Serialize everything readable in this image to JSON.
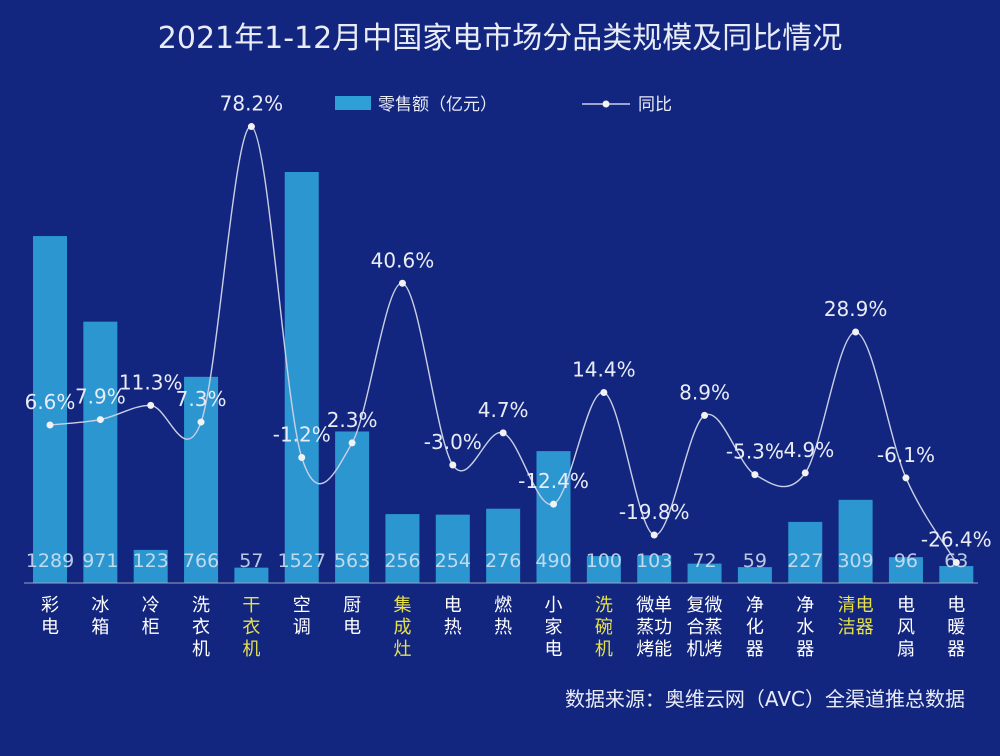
{
  "title": "2021年1-12月中国家电市场分品类规模及同比情况",
  "source": "数据来源：奥维云网（AVC）全渠道推总数据",
  "legend": {
    "bar_label": "零售额（亿元）",
    "line_label": "同比"
  },
  "colors": {
    "background": "#13267f",
    "bar": "#2f9fd8",
    "line": "#c9cfe6",
    "highlight": "#e6e04a"
  },
  "chart_data": {
    "type": "bar",
    "title": "2021年1-12月中国家电市场分品类规模及同比情况",
    "categories": [
      [
        "彩",
        "电"
      ],
      [
        "冰",
        "箱"
      ],
      [
        "冷",
        "柜"
      ],
      [
        "洗",
        "衣",
        "机"
      ],
      [
        "干",
        "衣",
        "机"
      ],
      [
        "空",
        "调"
      ],
      [
        "厨",
        "电"
      ],
      [
        "集",
        "成",
        "灶"
      ],
      [
        "电",
        "热"
      ],
      [
        "燃",
        "热"
      ],
      [
        "小",
        "家",
        "电"
      ],
      [
        "洗",
        "碗",
        "机"
      ],
      [
        "微单",
        "蒸功",
        "烤能"
      ],
      [
        "复微",
        "合蒸",
        "机烤"
      ],
      [
        "净",
        "化",
        "器"
      ],
      [
        "净",
        "水",
        "器"
      ],
      [
        "清电",
        "洁器"
      ],
      [
        "电",
        "风",
        "扇"
      ],
      [
        "电",
        "暖",
        "器"
      ]
    ],
    "highlighted": [
      false,
      false,
      false,
      false,
      true,
      false,
      false,
      true,
      false,
      false,
      false,
      true,
      false,
      false,
      false,
      false,
      true,
      false,
      false
    ],
    "series": [
      {
        "name": "零售额（亿元）",
        "type": "bar",
        "values": [
          1289,
          971,
          123,
          766,
          57,
          1527,
          563,
          256,
          254,
          276,
          490,
          100,
          103,
          72,
          59,
          227,
          309,
          96,
          63
        ]
      },
      {
        "name": "同比",
        "type": "line",
        "unit": "%",
        "values": [
          6.6,
          7.9,
          11.3,
          7.3,
          78.2,
          -1.2,
          2.3,
          40.6,
          -3.0,
          4.7,
          -12.4,
          14.4,
          -19.8,
          8.9,
          -5.3,
          -4.9,
          28.9,
          -6.1,
          -26.4
        ],
        "labels": [
          "6.6%",
          "7.9%",
          "11.3%",
          "7.3%",
          "78.2%",
          "-1.2%",
          "2.3%",
          "40.6%",
          "-3.0%",
          "4.7%",
          "-12.4%",
          "14.4%",
          "-19.8%",
          "8.9%",
          "-5.3%",
          "-4.9%",
          "28.9%",
          "-6.1%",
          "-26.4%"
        ]
      }
    ],
    "ylim": [
      0,
      1600
    ],
    "y2lim": [
      -30,
      80
    ],
    "grid": false,
    "legend_position": "top-center"
  }
}
